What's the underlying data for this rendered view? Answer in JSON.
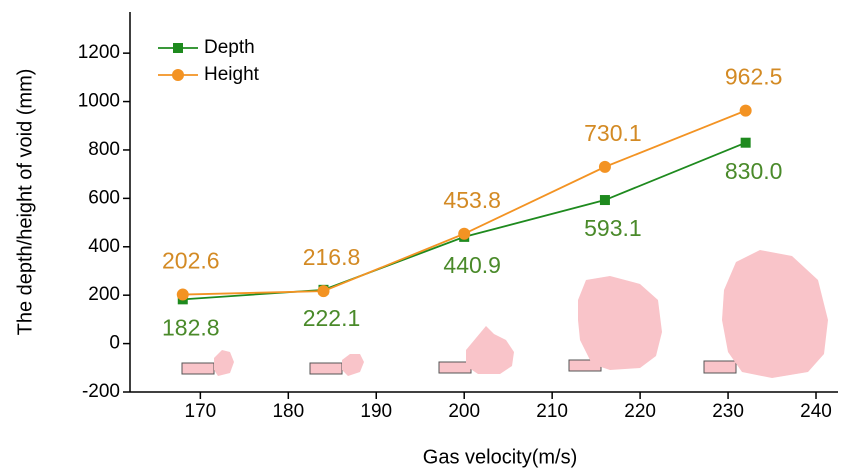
{
  "chart_data": {
    "type": "line",
    "x_label": "Gas velocity(m/s)",
    "y_label": "The depth/height of void (mm)",
    "x": [
      168,
      184,
      200,
      216,
      232
    ],
    "series": [
      {
        "name": "Depth",
        "color": "#1e8a1e",
        "label_color": "#4a8a2a",
        "marker": "square",
        "values": [
          182.8,
          222.1,
          440.9,
          593.1,
          830.0
        ],
        "value_labels": [
          "182.8",
          "222.1",
          "440.9",
          "593.1",
          "830.0"
        ]
      },
      {
        "name": "Height",
        "color": "#f39323",
        "label_color": "#d38a24",
        "marker": "circle",
        "values": [
          202.6,
          216.8,
          453.8,
          730.1,
          962.5
        ],
        "value_labels": [
          "202.6",
          "216.8",
          "453.8",
          "730.1",
          "962.5"
        ]
      }
    ],
    "xlim": [
      162,
      242.5
    ],
    "ylim": [
      -200,
      1370
    ],
    "xticks": [
      170,
      180,
      190,
      200,
      210,
      220,
      230,
      240
    ],
    "yticks": [
      -200,
      0,
      200,
      400,
      600,
      800,
      1000,
      1200
    ],
    "legend": "upper-left"
  }
}
